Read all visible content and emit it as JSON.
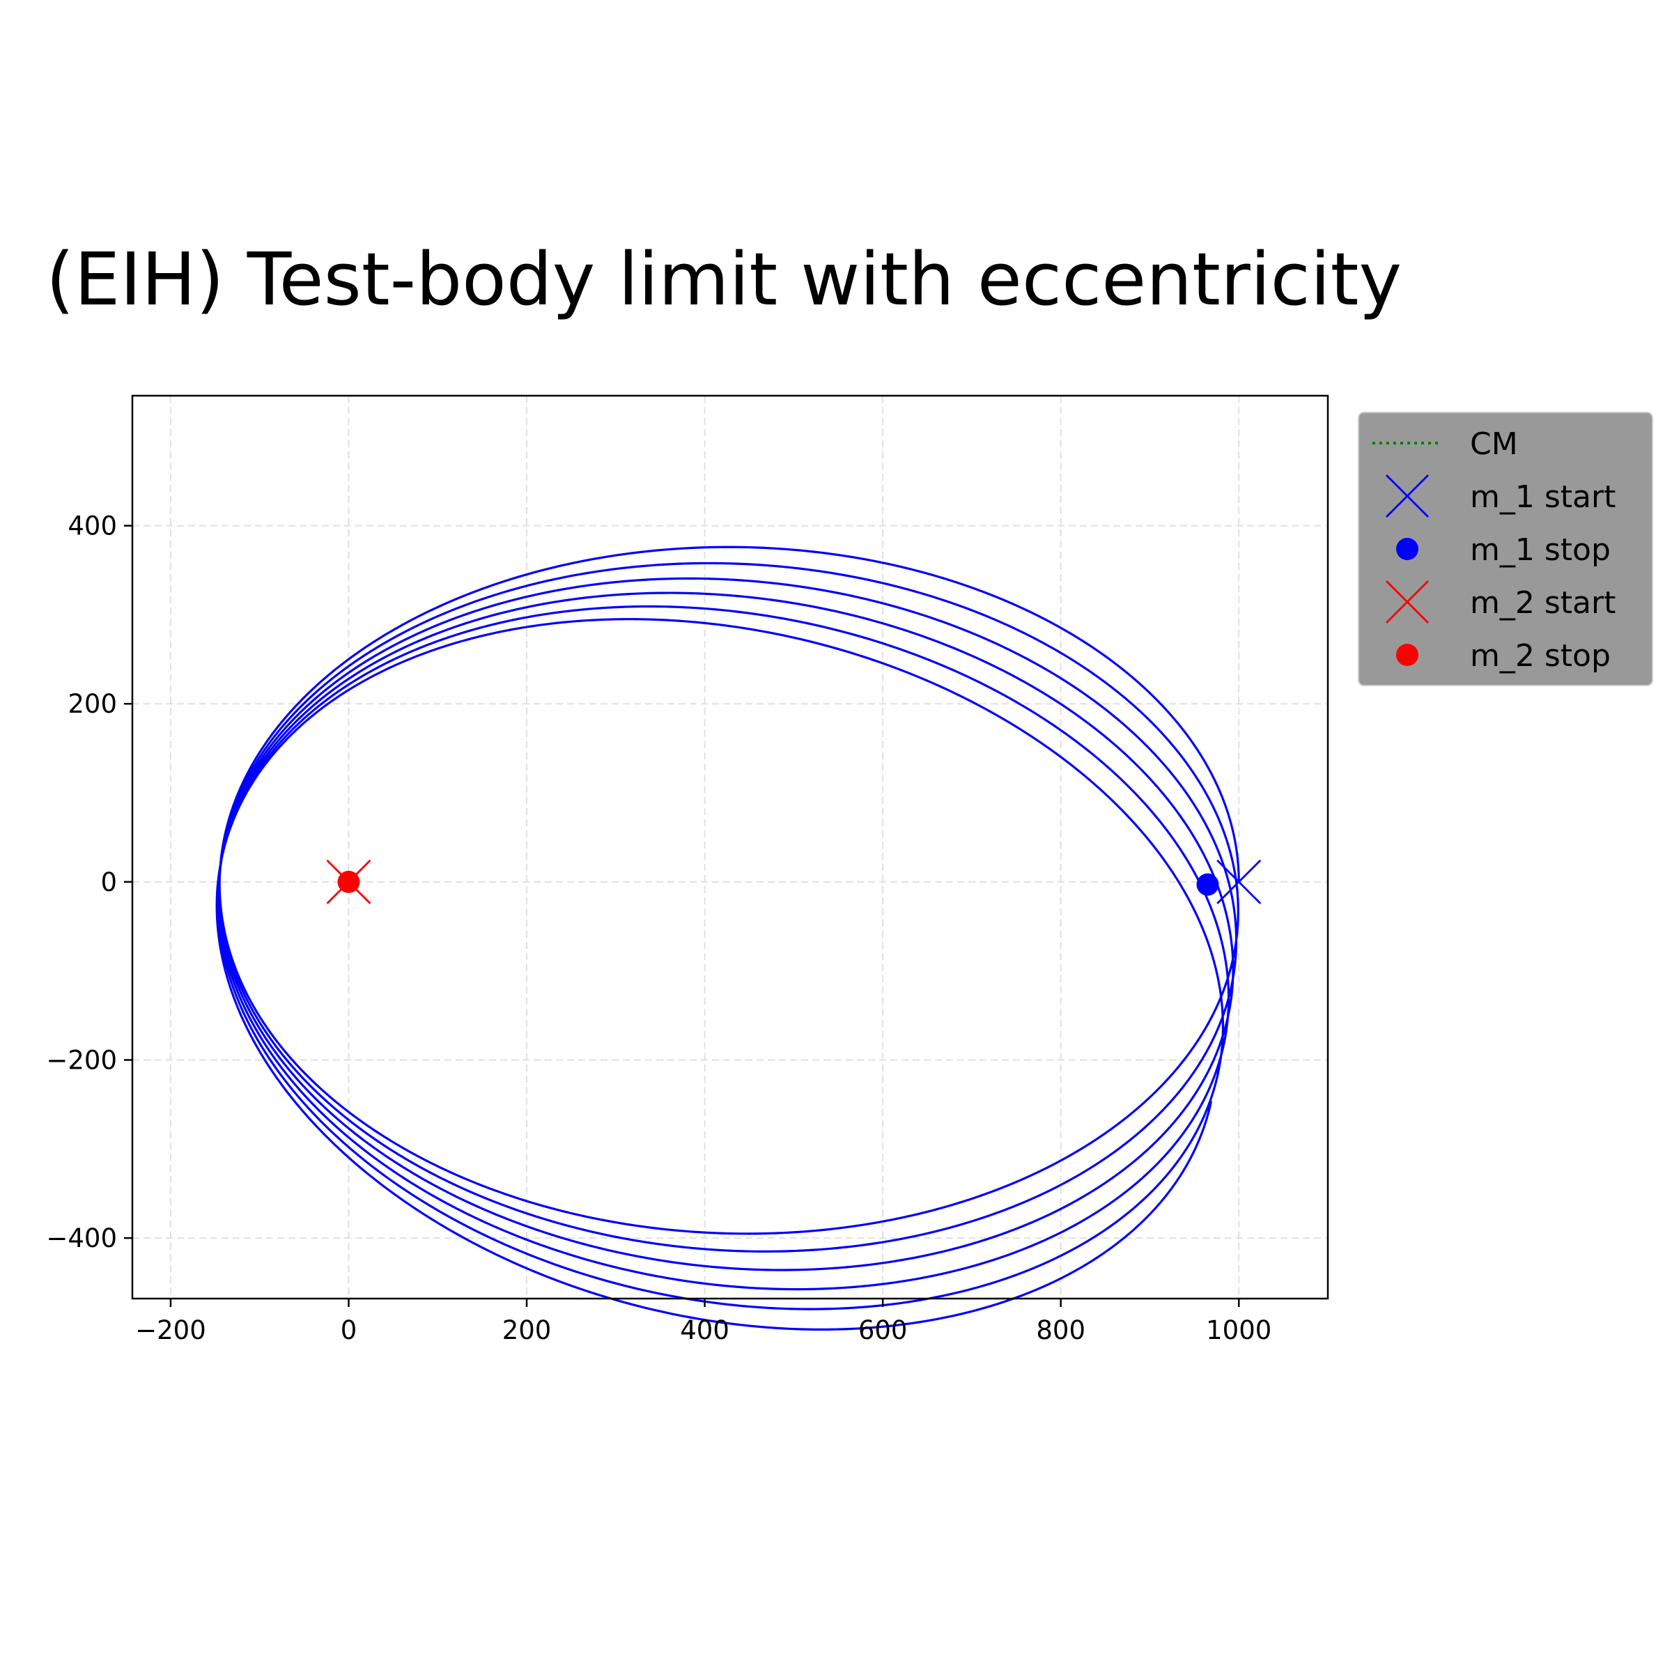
{
  "chart_data": {
    "type": "line",
    "title": "(EIH) Test-body limit with eccentricity",
    "xlabel": "",
    "ylabel": "",
    "xlim": [
      -243,
      1100
    ],
    "ylim": [
      -468,
      546
    ],
    "x_ticks": [
      -200,
      0,
      200,
      400,
      600,
      800,
      1000
    ],
    "y_ticks": [
      -400,
      -200,
      0,
      200,
      400
    ],
    "x_tick_labels": [
      "−200",
      "0",
      "200",
      "400",
      "600",
      "800",
      "1000"
    ],
    "y_tick_labels": [
      "−400",
      "−200",
      "0",
      "200",
      "400"
    ],
    "grid": true,
    "legend_position": "outside upper right",
    "orbit": {
      "focus": [
        0,
        0
      ],
      "pericenter_start": 1000,
      "apocenter": 145,
      "semi_major_axis": 572.5,
      "semi_minor_axis": 380.7,
      "turns": 6,
      "precession_deg_per_turn": -2.5,
      "stop_angle_deg": 2.2,
      "color": "#0000ff"
    },
    "markers": [
      {
        "label": "m_1 start",
        "x": 1000,
        "y": 0,
        "shape": "x",
        "color": "#0000ff"
      },
      {
        "label": "m_1 stop",
        "x": 965,
        "y": -3,
        "shape": "o",
        "color": "#0000ff"
      },
      {
        "label": "m_2 start",
        "x": 0,
        "y": 0,
        "shape": "x",
        "color": "#ff0000"
      },
      {
        "label": "m_2 stop",
        "x": 0,
        "y": 0,
        "shape": "o",
        "color": "#ff0000"
      }
    ],
    "legend": [
      {
        "label": "CM",
        "style": "dotted-line",
        "color": "#008000"
      },
      {
        "label": "m_1 start",
        "style": "x",
        "color": "#0000ff"
      },
      {
        "label": "m_1 stop",
        "style": "o",
        "color": "#0000ff"
      },
      {
        "label": "m_2 start",
        "style": "x",
        "color": "#ff0000"
      },
      {
        "label": "m_2 stop",
        "style": "o",
        "color": "#ff0000"
      }
    ],
    "colors": {
      "grid": "#e0e0e0",
      "legend_background": "#999999",
      "axes": "#000000"
    }
  }
}
